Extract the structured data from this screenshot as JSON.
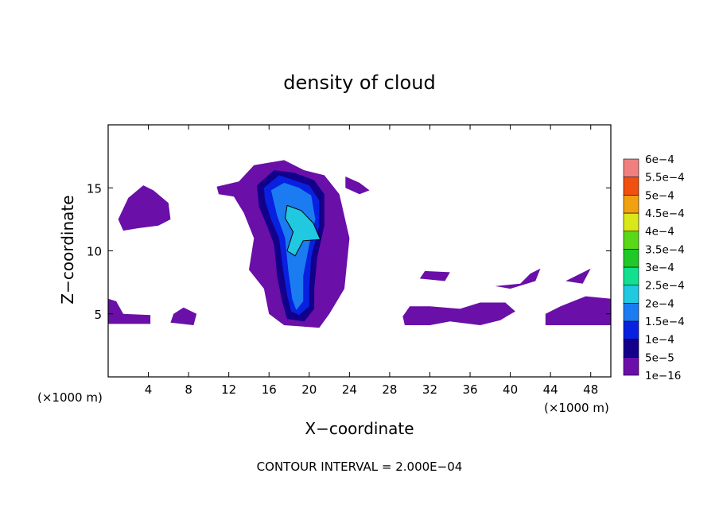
{
  "chart_data": {
    "type": "heatmap",
    "title": "density of cloud",
    "xlabel": "X−coordinate",
    "ylabel": "Z−coordinate",
    "x_unit": "(×1000 m)",
    "y_unit": "(×1000 m)",
    "footer": "CONTOUR INTERVAL = 2.000E−04",
    "xlim": [
      0,
      50
    ],
    "ylim": [
      0,
      20
    ],
    "xticks": [
      4,
      8,
      12,
      16,
      20,
      24,
      28,
      32,
      36,
      40,
      44,
      48
    ],
    "yticks": [
      5,
      10,
      15
    ],
    "legend_placement": "right",
    "colorbar": {
      "levels": [
        "1e−16",
        "5e−5",
        "1e−4",
        "1.5e−4",
        "2e−4",
        "2.5e−4",
        "3e−4",
        "3.5e−4",
        "4e−4",
        "4.5e−4",
        "5e−4",
        "5.5e−4",
        "6e−4"
      ],
      "colors": [
        "#6a0fa8",
        "#12008a",
        "#0820e0",
        "#1a7cf0",
        "#20c8e0",
        "#10e090",
        "#20c828",
        "#58d818",
        "#d8e818",
        "#f0a010",
        "#f05010",
        "#f03030",
        "#f08080"
      ]
    },
    "regions": [
      {
        "level": 0,
        "points": [
          [
            1,
            12.5
          ],
          [
            2,
            14.2
          ],
          [
            3.5,
            15.2
          ],
          [
            4.5,
            14.8
          ],
          [
            6,
            13.8
          ],
          [
            6.2,
            12.5
          ],
          [
            5,
            12
          ],
          [
            3,
            11.8
          ],
          [
            1.5,
            11.6
          ]
        ]
      },
      {
        "level": 0,
        "points": [
          [
            0,
            4.2
          ],
          [
            4.2,
            4.2
          ],
          [
            4.2,
            4.9
          ],
          [
            1.5,
            5.0
          ],
          [
            0.8,
            6.0
          ],
          [
            0,
            6.2
          ]
        ]
      },
      {
        "level": 0,
        "points": [
          [
            6.2,
            4.3
          ],
          [
            8.5,
            4.1
          ],
          [
            8.8,
            5.0
          ],
          [
            7.5,
            5.5
          ],
          [
            6.5,
            5.0
          ]
        ]
      },
      {
        "level": 0,
        "points": [
          [
            10.8,
            15.1
          ],
          [
            13.0,
            15.5
          ],
          [
            14.5,
            16.8
          ],
          [
            17.5,
            17.2
          ],
          [
            19.5,
            16.4
          ],
          [
            21.5,
            16.0
          ],
          [
            23.0,
            14.5
          ],
          [
            24.0,
            11.0
          ],
          [
            23.5,
            7.0
          ],
          [
            22.0,
            5.0
          ],
          [
            21.0,
            3.9
          ],
          [
            17.5,
            4.1
          ],
          [
            16.0,
            5.0
          ],
          [
            15.5,
            7.0
          ],
          [
            14.0,
            8.5
          ],
          [
            14.5,
            11.0
          ],
          [
            13.5,
            13.0
          ],
          [
            12.5,
            14.3
          ],
          [
            11.0,
            14.5
          ]
        ]
      },
      {
        "level": 0,
        "points": [
          [
            23.6,
            15.9
          ],
          [
            25.0,
            15.4
          ],
          [
            26.0,
            14.8
          ],
          [
            25.0,
            14.5
          ],
          [
            23.6,
            15.0
          ]
        ]
      },
      {
        "level": 0,
        "points": [
          [
            29.5,
            4.1
          ],
          [
            32.0,
            4.1
          ],
          [
            34.0,
            4.4
          ],
          [
            37.0,
            4.1
          ],
          [
            39.0,
            4.5
          ],
          [
            40.5,
            5.2
          ],
          [
            39.5,
            5.9
          ],
          [
            37.0,
            5.9
          ],
          [
            35.0,
            5.4
          ],
          [
            32.0,
            5.6
          ],
          [
            30.0,
            5.6
          ],
          [
            29.3,
            4.8
          ]
        ]
      },
      {
        "level": 0,
        "points": [
          [
            31.0,
            7.8
          ],
          [
            33.5,
            7.6
          ],
          [
            34.0,
            8.3
          ],
          [
            31.5,
            8.4
          ]
        ]
      },
      {
        "level": 0,
        "points": [
          [
            38.5,
            7.2
          ],
          [
            41.0,
            7.4
          ],
          [
            42.0,
            8.2
          ],
          [
            43.0,
            8.6
          ],
          [
            42.5,
            7.6
          ],
          [
            40.0,
            7.0
          ]
        ]
      },
      {
        "level": 0,
        "points": [
          [
            43.5,
            4.1
          ],
          [
            50,
            4.1
          ],
          [
            50,
            6.2
          ],
          [
            47.5,
            6.4
          ],
          [
            45.0,
            5.6
          ],
          [
            43.5,
            5.0
          ]
        ]
      },
      {
        "level": 0,
        "points": [
          [
            45.5,
            7.6
          ],
          [
            47.0,
            8.2
          ],
          [
            48.0,
            8.6
          ],
          [
            47.2,
            7.4
          ]
        ]
      },
      {
        "level": 1,
        "points": [
          [
            14.8,
            15.2
          ],
          [
            16.5,
            16.4
          ],
          [
            18.5,
            16.2
          ],
          [
            20.5,
            15.6
          ],
          [
            21.5,
            14.5
          ],
          [
            21.5,
            12.0
          ],
          [
            20.8,
            9.5
          ],
          [
            20.5,
            7.0
          ],
          [
            20.5,
            5.4
          ],
          [
            19.5,
            4.4
          ],
          [
            17.8,
            4.6
          ],
          [
            17.3,
            6.0
          ],
          [
            16.8,
            8.0
          ],
          [
            16.5,
            10.5
          ],
          [
            15.8,
            12.0
          ],
          [
            15.0,
            13.5
          ]
        ]
      },
      {
        "level": 2,
        "points": [
          [
            15.5,
            15.0
          ],
          [
            17.0,
            16.0
          ],
          [
            18.5,
            15.6
          ],
          [
            20.0,
            15.2
          ],
          [
            21.0,
            14.0
          ],
          [
            21.0,
            12.0
          ],
          [
            20.2,
            9.5
          ],
          [
            20.0,
            7.0
          ],
          [
            20.0,
            5.6
          ],
          [
            19.0,
            4.9
          ],
          [
            18.2,
            5.2
          ],
          [
            17.8,
            6.5
          ],
          [
            17.4,
            8.5
          ],
          [
            17.0,
            11.0
          ],
          [
            16.2,
            12.5
          ],
          [
            15.6,
            14.0
          ]
        ]
      },
      {
        "level": 3,
        "points": [
          [
            16.2,
            14.8
          ],
          [
            17.5,
            15.4
          ],
          [
            19.0,
            15.0
          ],
          [
            20.2,
            14.4
          ],
          [
            20.6,
            12.5
          ],
          [
            20.0,
            10.5
          ],
          [
            19.4,
            8.0
          ],
          [
            19.4,
            6.0
          ],
          [
            18.7,
            5.3
          ],
          [
            18.3,
            6.2
          ],
          [
            17.9,
            8.5
          ],
          [
            17.6,
            11.0
          ],
          [
            16.8,
            12.8
          ]
        ]
      },
      {
        "level": 4,
        "points": [
          [
            17.8,
            13.6
          ],
          [
            19.2,
            13.2
          ],
          [
            20.4,
            12.2
          ],
          [
            21.1,
            10.9
          ],
          [
            19.4,
            10.8
          ],
          [
            18.6,
            9.6
          ],
          [
            17.8,
            10.0
          ],
          [
            18.4,
            11.5
          ],
          [
            17.6,
            12.6
          ]
        ]
      }
    ],
    "contour_line": [
      [
        17.8,
        13.6
      ],
      [
        19.2,
        13.2
      ],
      [
        20.4,
        12.2
      ],
      [
        21.1,
        10.9
      ],
      [
        19.4,
        10.8
      ],
      [
        18.6,
        9.6
      ],
      [
        17.8,
        10.0
      ],
      [
        18.4,
        11.5
      ],
      [
        17.6,
        12.6
      ]
    ]
  }
}
